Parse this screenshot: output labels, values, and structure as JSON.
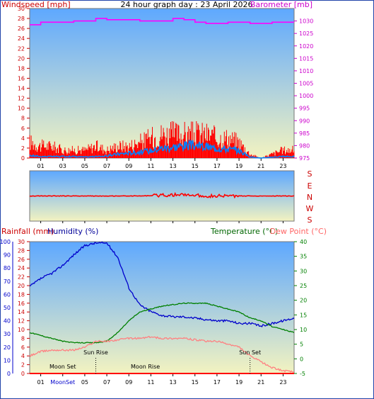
{
  "header": {
    "title": "24 hour graph day : 23 April 2026",
    "left_label": "Windspeed [mph]",
    "right_label": "Barometer [mb]"
  },
  "colors": {
    "wind_gust": "#ff0000",
    "wind_avg": "#0080ff",
    "barometer": "#ff00ff",
    "direction": "#ff0000",
    "rain": "#ff0000",
    "humidity": "#0000cc",
    "temperature": "#008000",
    "dewpoint": "#ff8080",
    "sky_top": "#5ea8ff",
    "sky_bottom": "#f3f3c0",
    "frame": "#2244aa"
  },
  "chart_data": [
    {
      "type": "line",
      "title": "24 hour graph day : 23 April 2026",
      "ylabel": "Windspeed [mph]",
      "ylabel_right": "Barometer [mb]",
      "ylim": [
        0,
        30
      ],
      "ylim_right": [
        975,
        1035
      ],
      "yticks": [
        0,
        2,
        4,
        6,
        8,
        10,
        12,
        14,
        16,
        18,
        20,
        22,
        24,
        26,
        28,
        30
      ],
      "yticks_right": [
        975,
        980,
        985,
        990,
        995,
        1000,
        1005,
        1010,
        1015,
        1020,
        1025,
        1030
      ],
      "xticks": [
        "01",
        "03",
        "05",
        "07",
        "09",
        "11",
        "13",
        "15",
        "17",
        "19",
        "21",
        "23"
      ],
      "x": [
        0,
        1,
        2,
        3,
        4,
        5,
        6,
        7,
        8,
        9,
        10,
        11,
        12,
        13,
        14,
        15,
        16,
        17,
        18,
        19,
        20,
        21,
        22,
        23,
        24
      ],
      "series": [
        {
          "name": "Windspeed",
          "role": "gust",
          "values": [
            4,
            3,
            3,
            2,
            2,
            2,
            3,
            2,
            3,
            3,
            4,
            5,
            6,
            6,
            6,
            6,
            6,
            5,
            5,
            4,
            1,
            0,
            1,
            2,
            2
          ]
        },
        {
          "name": "Windspeed",
          "role": "average",
          "values": [
            0.5,
            0.3,
            0.3,
            0.3,
            0.3,
            0.2,
            0.3,
            0.4,
            0.8,
            1,
            1.2,
            1.5,
            2,
            2.2,
            2.5,
            2.5,
            2.2,
            2,
            1.8,
            1.5,
            0.2,
            0,
            0.2,
            0.3,
            0.3
          ]
        },
        {
          "name": "Barometer",
          "axis": "right",
          "values": [
            1028.5,
            1029.5,
            1029.5,
            1029.5,
            1030,
            1030,
            1031,
            1030.5,
            1030.5,
            1030.5,
            1030,
            1030,
            1030,
            1031,
            1030.5,
            1029.5,
            1029,
            1029,
            1029.5,
            1029.5,
            1029,
            1029,
            1029.5,
            1029.5,
            1029.5
          ]
        }
      ]
    },
    {
      "type": "line",
      "ylabel_letters": [
        "S",
        "E",
        "N",
        "W",
        "S"
      ],
      "note": "wind direction",
      "ylim": [
        0,
        360
      ],
      "x": [
        0,
        2,
        4,
        6,
        8,
        10,
        12,
        14,
        16,
        18,
        20,
        22,
        24
      ],
      "series": [
        {
          "name": "Wind direction",
          "values": [
            180,
            180,
            180,
            180,
            180,
            180,
            175,
            170,
            180,
            180,
            180,
            180,
            180
          ]
        }
      ]
    },
    {
      "type": "line",
      "ylabel_left_outer": "Rainfall (mm)",
      "ylabel_left_inner": "Humidity (%)",
      "ylabel_right": "Temperature (°C)",
      "ylabel_right_2": "Dew Point (°C)",
      "ylim_humidity": [
        0,
        100
      ],
      "ylim_rain": [
        0,
        30
      ],
      "ylim_temp": [
        -5,
        40
      ],
      "yticks_humidity": [
        0,
        10,
        20,
        30,
        40,
        50,
        60,
        70,
        80,
        90,
        100
      ],
      "yticks_rain": [
        0,
        2,
        4,
        6,
        8,
        10,
        12,
        14,
        16,
        18,
        20,
        22,
        24,
        26,
        28,
        30
      ],
      "yticks_temp": [
        -5,
        0,
        5,
        10,
        15,
        20,
        25,
        30,
        35,
        40
      ],
      "xticks": [
        "01",
        "MoonSet",
        "05",
        "07",
        "09",
        "11",
        "13",
        "15",
        "17",
        "19",
        "21",
        "23"
      ],
      "x": [
        0,
        1,
        2,
        3,
        4,
        5,
        6,
        7,
        8,
        9,
        10,
        11,
        12,
        13,
        14,
        15,
        16,
        17,
        18,
        19,
        20,
        21,
        22,
        23,
        24
      ],
      "series": [
        {
          "name": "Humidity (%)",
          "axis": "humidity",
          "values": [
            66,
            72,
            76,
            82,
            90,
            97,
            99,
            99,
            88,
            65,
            52,
            47,
            44,
            43,
            43,
            42,
            41,
            40,
            40,
            38,
            38,
            36,
            38,
            40,
            42
          ]
        },
        {
          "name": "Temperature (°C)",
          "axis": "temp",
          "values": [
            9,
            8,
            7,
            6,
            5.5,
            5.5,
            5.5,
            6,
            9,
            13,
            16,
            17,
            18,
            18.5,
            19,
            19,
            19,
            18,
            17,
            16,
            14,
            13,
            11,
            10,
            9
          ]
        },
        {
          "name": "Dew Point (°C)",
          "axis": "temp",
          "values": [
            1,
            2.5,
            3,
            3,
            3,
            4,
            6,
            6,
            6.5,
            7,
            7,
            7.5,
            7,
            7,
            7,
            6.5,
            6,
            6,
            5,
            4,
            1,
            -1,
            -3,
            -4,
            -4.5
          ]
        },
        {
          "name": "Rainfall (mm)",
          "axis": "rain",
          "values": [
            0,
            0,
            0,
            0,
            0,
            0,
            0,
            0,
            0,
            0,
            0,
            0,
            0,
            0,
            0,
            0,
            0,
            0,
            0,
            0,
            0,
            0,
            0,
            0,
            0
          ]
        }
      ],
      "annotations": [
        {
          "text": "Sun Rise",
          "x": 6
        },
        {
          "text": "Sun Set",
          "x": 20
        },
        {
          "text": "Moon Set",
          "x": 3
        },
        {
          "text": "Moon Rise",
          "x": 10.5
        }
      ]
    }
  ]
}
